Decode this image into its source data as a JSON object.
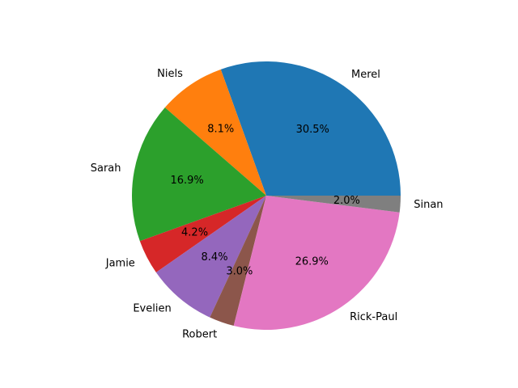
{
  "chart_data": {
    "type": "pie",
    "title": "",
    "slices": [
      {
        "label": "Merel",
        "percent": 30.5,
        "percent_label": "30.5%",
        "color": "#1f77b4"
      },
      {
        "label": "Niels",
        "percent": 8.1,
        "percent_label": "8.1%",
        "color": "#ff7f0e"
      },
      {
        "label": "Sarah",
        "percent": 16.9,
        "percent_label": "16.9%",
        "color": "#2ca02c"
      },
      {
        "label": "Jamie",
        "percent": 4.2,
        "percent_label": "4.2%",
        "color": "#d62728"
      },
      {
        "label": "Evelien",
        "percent": 8.4,
        "percent_label": "8.4%",
        "color": "#9467bd"
      },
      {
        "label": "Robert",
        "percent": 3.0,
        "percent_label": "3.0%",
        "color": "#8c564b"
      },
      {
        "label": "Rick-Paul",
        "percent": 26.9,
        "percent_label": "26.9%",
        "color": "#e377c2"
      },
      {
        "label": "Sinan",
        "percent": 2.0,
        "percent_label": "2.0%",
        "color": "#7f7f7f"
      }
    ],
    "start_angle_deg": 0,
    "direction": "counterclockwise"
  }
}
